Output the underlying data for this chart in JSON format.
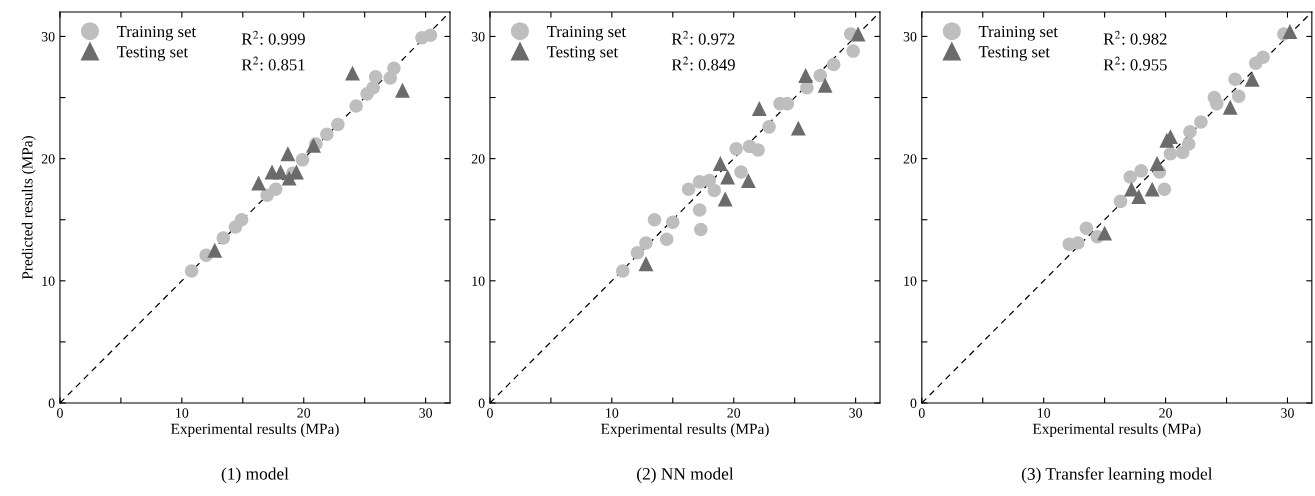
{
  "chart_data": [
    {
      "type": "scatter",
      "title": "(1) model",
      "xlabel": "Experimental results (MPa)",
      "ylabel": "Predicted results (MPa)",
      "xlim": [
        0,
        32
      ],
      "ylim": [
        0,
        32
      ],
      "xticks": [
        0,
        {
          "value": 5,
          "label": null
        },
        10,
        {
          "value": 15,
          "label": null
        },
        20,
        {
          "value": 25,
          "label": null
        },
        30
      ],
      "yticks": [
        0,
        {
          "value": 5,
          "label": null
        },
        10,
        {
          "value": 15,
          "label": null
        },
        20,
        {
          "value": 25,
          "label": null
        },
        30
      ],
      "legend": "top left",
      "grid": false,
      "annotations": [
        "R$^{2}$: 0.999",
        "R$^{2}$: 0.851"
      ],
      "series": [
        {
          "name": "Training set",
          "color": "#bebebe",
          "marker": "circle",
          "x": [
            10.8,
            12.0,
            13.4,
            14.4,
            14.9,
            17.0,
            17.7,
            19.1,
            19.9,
            21.0,
            21.9,
            22.8,
            24.3,
            25.2,
            25.7,
            25.9,
            27.1,
            27.4,
            29.7,
            30.4
          ],
          "values": [
            10.8,
            12.1,
            13.5,
            14.4,
            15.0,
            17.0,
            17.5,
            18.8,
            19.9,
            21.2,
            22.0,
            22.8,
            24.3,
            25.3,
            25.8,
            26.7,
            26.6,
            27.4,
            29.9,
            30.1
          ]
        },
        {
          "name": "Testing set",
          "color": "#6b6b6b",
          "marker": "triangle",
          "x": [
            12.7,
            16.3,
            17.4,
            18.1,
            18.7,
            18.8,
            19.4,
            20.8,
            24.0,
            28.1
          ],
          "values": [
            12.5,
            18.0,
            18.9,
            18.9,
            20.4,
            18.4,
            18.9,
            21.1,
            27.0,
            25.6
          ]
        },
        {
          "type": "line",
          "color": "#000000",
          "line_style": "dashed",
          "marker": "none",
          "x": [
            0,
            32
          ],
          "values": [
            0,
            32
          ]
        }
      ]
    },
    {
      "type": "scatter",
      "title": "(2) NN model",
      "xlabel": "Experimental results (MPa)",
      "xlim": [
        0,
        32
      ],
      "ylim": [
        0,
        32
      ],
      "xticks": [
        0,
        {
          "value": 5,
          "label": null
        },
        10,
        {
          "value": 15,
          "label": null
        },
        20,
        {
          "value": 25,
          "label": null
        },
        30
      ],
      "yticks": [
        0,
        {
          "value": 5,
          "label": null
        },
        10,
        {
          "value": 15,
          "label": null
        },
        20,
        {
          "value": 25,
          "label": null
        },
        30
      ],
      "legend": "top left",
      "grid": false,
      "annotations": [
        "R$^{2}$: 0.972",
        "R$^{2}$: 0.849"
      ],
      "series": [
        {
          "name": "Training set",
          "color": "#bebebe",
          "marker": "circle",
          "x": [
            10.9,
            12.1,
            12.8,
            13.5,
            14.5,
            15.0,
            17.2,
            17.3,
            16.3,
            17.2,
            18.0,
            18.4,
            20.2,
            20.6,
            21.3,
            22.0,
            22.9,
            23.8,
            24.4,
            26.0,
            27.1,
            28.2,
            29.6,
            29.8
          ],
          "values": [
            10.8,
            12.3,
            13.1,
            15.0,
            13.4,
            14.8,
            15.8,
            14.2,
            17.5,
            18.1,
            18.2,
            17.4,
            20.8,
            18.9,
            21.0,
            20.7,
            22.6,
            24.5,
            24.5,
            25.8,
            26.8,
            27.7,
            30.2,
            28.8
          ]
        },
        {
          "name": "Testing set",
          "color": "#6b6b6b",
          "marker": "triangle",
          "x": [
            12.8,
            18.9,
            19.3,
            19.5,
            21.2,
            22.1,
            25.3,
            25.9,
            27.5,
            30.2
          ],
          "values": [
            11.4,
            19.6,
            16.7,
            18.5,
            18.2,
            24.1,
            22.5,
            26.8,
            26.0,
            30.2
          ]
        },
        {
          "type": "line",
          "color": "#000000",
          "line_style": "dashed",
          "marker": "none",
          "x": [
            0,
            32
          ],
          "values": [
            0,
            32
          ]
        }
      ]
    },
    {
      "type": "scatter",
      "title": "(3) Transfer learning model",
      "xlabel": "Experimental results (MPa)",
      "xlim": [
        0,
        32
      ],
      "ylim": [
        0,
        32
      ],
      "xticks": [
        0,
        {
          "value": 5,
          "label": null
        },
        10,
        {
          "value": 15,
          "label": null
        },
        20,
        {
          "value": 25,
          "label": null
        },
        30
      ],
      "yticks": [
        0,
        {
          "value": 5,
          "label": null
        },
        10,
        {
          "value": 15,
          "label": null
        },
        20,
        {
          "value": 25,
          "label": null
        },
        30
      ],
      "legend": "top left",
      "grid": false,
      "annotations": [
        "R$^{2}$: 0.982",
        "R$^{2}$: 0.955"
      ],
      "series": [
        {
          "name": "Training set",
          "color": "#bebebe",
          "marker": "circle",
          "x": [
            12.1,
            12.8,
            13.5,
            14.4,
            16.3,
            17.1,
            18.0,
            19.5,
            19.9,
            20.4,
            21.4,
            21.9,
            22.0,
            22.9,
            24.0,
            24.2,
            25.7,
            26.0,
            27.4,
            28.0,
            29.7
          ],
          "values": [
            13.0,
            13.1,
            14.3,
            13.6,
            16.5,
            18.5,
            19.0,
            18.9,
            17.5,
            20.4,
            20.5,
            21.2,
            22.2,
            23.0,
            25.0,
            24.5,
            26.5,
            25.1,
            27.8,
            28.3,
            30.2
          ]
        },
        {
          "name": "Testing set",
          "color": "#6b6b6b",
          "marker": "triangle",
          "x": [
            15.0,
            17.2,
            17.8,
            18.9,
            19.3,
            20.1,
            20.4,
            25.3,
            27.1,
            30.2
          ],
          "values": [
            13.9,
            17.5,
            16.9,
            17.5,
            19.6,
            21.5,
            21.8,
            24.2,
            26.5,
            30.4
          ]
        },
        {
          "type": "line",
          "color": "#000000",
          "line_style": "dashed",
          "marker": "none",
          "x": [
            0,
            32
          ],
          "values": [
            0,
            32
          ]
        }
      ]
    }
  ]
}
